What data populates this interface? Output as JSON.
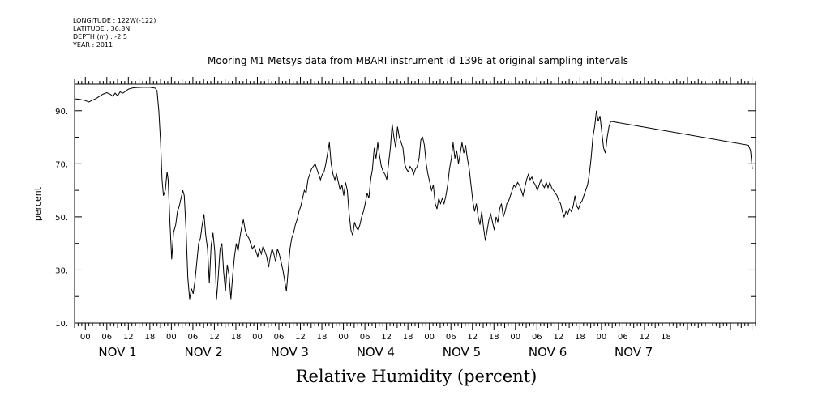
{
  "header": {
    "longitude": "LONGITUDE : 122W(-122)",
    "latitude": "LATITUDE : 36.8N",
    "depth": "DEPTH (m) : -2.5",
    "year": "YEAR : 2011"
  },
  "chart_data": {
    "type": "line",
    "title": "Mooring M1 Metsys data from MBARI instrument id 1396 at original sampling intervals",
    "xlabel": "Relative Humidity (percent)",
    "ylabel": "percent",
    "ylim": [
      10,
      100
    ],
    "yticks": [
      10,
      30,
      50,
      70,
      90
    ],
    "ytick_labels": [
      "10.",
      "30.",
      "50.",
      "70.",
      "90."
    ],
    "xlim_hours": [
      -3,
      187
    ],
    "xtick_labels": [
      "00",
      "06",
      "12",
      "18",
      "00",
      "06",
      "12",
      "18",
      "00",
      "06",
      "12",
      "18",
      "00",
      "06",
      "12",
      "18",
      "00",
      "06",
      "12",
      "18",
      "00",
      "06",
      "12",
      "18",
      "00",
      "06",
      "12",
      "18"
    ],
    "day_labels": [
      "NOV  1",
      "NOV  2",
      "NOV  3",
      "NOV  4",
      "NOV  5",
      "NOV  6",
      "NOV  7"
    ],
    "grid": false,
    "series": [
      {
        "values": [
          [
            -3,
            94.5
          ],
          [
            -1.5,
            94.3
          ],
          [
            0,
            93.8
          ],
          [
            1,
            93.3
          ],
          [
            2,
            94.0
          ],
          [
            3,
            94.6
          ],
          [
            4,
            95.5
          ],
          [
            5,
            96.3
          ],
          [
            6,
            96.8
          ],
          [
            7,
            96.2
          ],
          [
            7.7,
            95.4
          ],
          [
            8.3,
            96.6
          ],
          [
            9,
            95.6
          ],
          [
            9.7,
            97.1
          ],
          [
            10.5,
            96.6
          ],
          [
            11.3,
            97.4
          ],
          [
            12,
            98.1
          ],
          [
            13,
            98.5
          ],
          [
            14,
            98.7
          ],
          [
            16,
            98.8
          ],
          [
            18,
            98.8
          ],
          [
            19.5,
            98.5
          ],
          [
            20,
            97.5
          ],
          [
            20.5,
            90
          ],
          [
            21,
            78
          ],
          [
            21.4,
            64
          ],
          [
            21.8,
            58
          ],
          [
            22.3,
            60
          ],
          [
            22.8,
            67
          ],
          [
            23.1,
            64
          ],
          [
            23.6,
            48
          ],
          [
            24.1,
            34
          ],
          [
            24.6,
            44
          ],
          [
            25.2,
            47
          ],
          [
            25.7,
            52
          ],
          [
            26.2,
            54
          ],
          [
            26.7,
            57
          ],
          [
            27.2,
            60
          ],
          [
            27.6,
            58
          ],
          [
            28.1,
            45
          ],
          [
            28.6,
            27
          ],
          [
            29.1,
            19
          ],
          [
            29.6,
            23
          ],
          [
            30.1,
            21
          ],
          [
            30.6,
            26
          ],
          [
            31.1,
            33
          ],
          [
            31.6,
            40
          ],
          [
            32.1,
            42
          ],
          [
            32.6,
            47
          ],
          [
            33.1,
            51
          ],
          [
            33.6,
            43
          ],
          [
            34.1,
            38
          ],
          [
            34.6,
            25
          ],
          [
            35.1,
            39
          ],
          [
            35.6,
            44
          ],
          [
            36.1,
            37
          ],
          [
            36.6,
            19
          ],
          [
            37.1,
            28
          ],
          [
            37.6,
            38
          ],
          [
            38.1,
            40
          ],
          [
            38.6,
            29
          ],
          [
            39.1,
            22
          ],
          [
            39.6,
            32
          ],
          [
            40.1,
            28
          ],
          [
            40.6,
            19
          ],
          [
            41.1,
            28
          ],
          [
            41.6,
            35
          ],
          [
            42.1,
            40
          ],
          [
            42.6,
            37
          ],
          [
            43.1,
            42
          ],
          [
            43.6,
            46
          ],
          [
            44.1,
            49
          ],
          [
            44.6,
            45
          ],
          [
            45.1,
            43
          ],
          [
            45.6,
            42
          ],
          [
            46.1,
            40
          ],
          [
            46.6,
            38
          ],
          [
            47.1,
            39
          ],
          [
            47.6,
            37
          ],
          [
            48.1,
            35
          ],
          [
            48.6,
            38
          ],
          [
            49.1,
            36
          ],
          [
            49.6,
            39
          ],
          [
            50.1,
            37
          ],
          [
            50.6,
            35
          ],
          [
            51.1,
            31
          ],
          [
            51.6,
            35
          ],
          [
            52.1,
            38
          ],
          [
            52.6,
            36
          ],
          [
            53.1,
            33
          ],
          [
            53.6,
            38
          ],
          [
            54.1,
            36
          ],
          [
            54.6,
            33
          ],
          [
            55.1,
            30
          ],
          [
            55.6,
            26
          ],
          [
            56.1,
            22
          ],
          [
            56.6,
            30
          ],
          [
            57.1,
            38
          ],
          [
            57.6,
            42
          ],
          [
            58.1,
            44
          ],
          [
            58.6,
            47
          ],
          [
            59.1,
            49
          ],
          [
            59.6,
            52
          ],
          [
            60.1,
            54
          ],
          [
            60.6,
            57
          ],
          [
            61.1,
            60
          ],
          [
            61.6,
            59
          ],
          [
            62.1,
            64
          ],
          [
            62.6,
            66
          ],
          [
            63.1,
            68
          ],
          [
            63.6,
            69
          ],
          [
            64.1,
            70
          ],
          [
            64.6,
            68
          ],
          [
            65.1,
            66
          ],
          [
            65.6,
            64
          ],
          [
            66.1,
            66
          ],
          [
            66.6,
            67
          ],
          [
            67.1,
            70
          ],
          [
            67.6,
            74
          ],
          [
            68.1,
            78
          ],
          [
            68.6,
            70
          ],
          [
            69.1,
            66
          ],
          [
            69.6,
            64
          ],
          [
            70.1,
            66
          ],
          [
            70.6,
            63
          ],
          [
            71.1,
            60
          ],
          [
            71.6,
            62
          ],
          [
            72.1,
            58
          ],
          [
            72.6,
            63
          ],
          [
            73.1,
            60
          ],
          [
            73.6,
            51
          ],
          [
            74.1,
            45
          ],
          [
            74.6,
            43
          ],
          [
            75.1,
            48
          ],
          [
            75.6,
            46
          ],
          [
            76.1,
            45
          ],
          [
            76.6,
            47
          ],
          [
            77.1,
            50
          ],
          [
            77.6,
            52
          ],
          [
            78.1,
            55
          ],
          [
            78.6,
            59
          ],
          [
            79.1,
            57
          ],
          [
            79.6,
            64
          ],
          [
            80.1,
            68
          ],
          [
            80.6,
            76
          ],
          [
            81.1,
            72
          ],
          [
            81.6,
            78
          ],
          [
            82.1,
            73
          ],
          [
            82.6,
            69
          ],
          [
            83.1,
            67
          ],
          [
            83.6,
            66
          ],
          [
            84.1,
            64
          ],
          [
            84.6,
            70
          ],
          [
            85.1,
            76
          ],
          [
            85.6,
            85
          ],
          [
            86.1,
            80
          ],
          [
            86.6,
            76
          ],
          [
            87.1,
            84
          ],
          [
            87.6,
            80
          ],
          [
            88.1,
            78
          ],
          [
            88.6,
            76
          ],
          [
            89.1,
            70
          ],
          [
            89.6,
            68
          ],
          [
            90.1,
            67
          ],
          [
            90.6,
            69
          ],
          [
            91.1,
            68
          ],
          [
            91.6,
            66
          ],
          [
            92.1,
            68
          ],
          [
            92.6,
            69
          ],
          [
            93.1,
            72
          ],
          [
            93.6,
            79
          ],
          [
            94.1,
            80
          ],
          [
            94.6,
            77
          ],
          [
            95.1,
            70
          ],
          [
            95.6,
            66
          ],
          [
            96.1,
            63
          ],
          [
            96.6,
            60
          ],
          [
            97.1,
            62
          ],
          [
            97.6,
            55
          ],
          [
            98.1,
            53
          ],
          [
            98.6,
            57
          ],
          [
            99.1,
            55
          ],
          [
            99.6,
            57
          ],
          [
            100.1,
            55
          ],
          [
            100.6,
            58
          ],
          [
            101.1,
            62
          ],
          [
            101.6,
            68
          ],
          [
            102.1,
            72
          ],
          [
            102.6,
            78
          ],
          [
            103.1,
            72
          ],
          [
            103.6,
            75
          ],
          [
            104.1,
            70
          ],
          [
            104.6,
            74
          ],
          [
            105.1,
            78
          ],
          [
            105.6,
            74
          ],
          [
            106.1,
            77
          ],
          [
            106.6,
            72
          ],
          [
            107.1,
            68
          ],
          [
            107.6,
            62
          ],
          [
            108.1,
            56
          ],
          [
            108.6,
            52
          ],
          [
            109.1,
            55
          ],
          [
            109.6,
            50
          ],
          [
            110.1,
            47
          ],
          [
            110.6,
            52
          ],
          [
            111.1,
            46
          ],
          [
            111.6,
            41
          ],
          [
            112.1,
            45
          ],
          [
            112.6,
            49
          ],
          [
            113.1,
            51
          ],
          [
            113.6,
            48
          ],
          [
            114.1,
            45
          ],
          [
            114.6,
            50
          ],
          [
            115.1,
            48
          ],
          [
            115.6,
            53
          ],
          [
            116.1,
            55
          ],
          [
            116.6,
            50
          ],
          [
            117.1,
            52
          ],
          [
            117.6,
            55
          ],
          [
            118.1,
            56
          ],
          [
            118.6,
            58
          ],
          [
            119.1,
            60
          ],
          [
            119.6,
            62
          ],
          [
            120.1,
            61
          ],
          [
            120.6,
            63
          ],
          [
            121.1,
            62
          ],
          [
            121.6,
            60
          ],
          [
            122.1,
            58
          ],
          [
            122.6,
            61
          ],
          [
            123.1,
            64
          ],
          [
            123.6,
            66
          ],
          [
            124.1,
            64
          ],
          [
            124.6,
            65
          ],
          [
            125.1,
            63
          ],
          [
            125.6,
            62
          ],
          [
            126.1,
            60
          ],
          [
            126.6,
            62
          ],
          [
            127.1,
            64
          ],
          [
            127.6,
            62
          ],
          [
            128.1,
            61
          ],
          [
            128.6,
            63
          ],
          [
            129.1,
            61
          ],
          [
            129.6,
            63
          ],
          [
            130.1,
            61
          ],
          [
            130.6,
            60
          ],
          [
            131.1,
            59
          ],
          [
            131.6,
            58
          ],
          [
            132.1,
            56
          ],
          [
            132.6,
            55
          ],
          [
            133.1,
            52
          ],
          [
            133.6,
            50
          ],
          [
            134.1,
            52
          ],
          [
            134.6,
            51
          ],
          [
            135.1,
            53
          ],
          [
            135.6,
            52
          ],
          [
            136.1,
            54
          ],
          [
            136.6,
            58
          ],
          [
            137.1,
            54
          ],
          [
            137.6,
            53
          ],
          [
            138.1,
            55
          ],
          [
            138.6,
            56
          ],
          [
            139.1,
            58
          ],
          [
            139.6,
            60
          ],
          [
            140.1,
            62
          ],
          [
            140.6,
            66
          ],
          [
            141.1,
            72
          ],
          [
            141.6,
            80
          ],
          [
            142.1,
            84
          ],
          [
            142.6,
            90
          ],
          [
            143.1,
            86
          ],
          [
            143.6,
            88
          ],
          [
            144.1,
            82
          ],
          [
            144.6,
            76
          ],
          [
            145.1,
            74
          ],
          [
            145.6,
            80
          ],
          [
            146.1,
            84
          ],
          [
            146.6,
            86
          ],
          [
            185,
            77
          ],
          [
            185.6,
            75
          ],
          [
            186.1,
            68
          ]
        ]
      }
    ]
  }
}
